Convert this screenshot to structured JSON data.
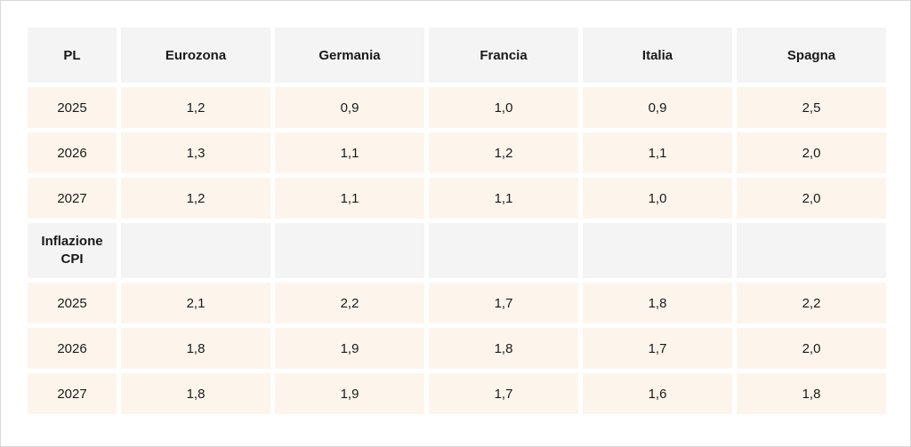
{
  "header": [
    "PL",
    "Eurozona",
    "Germania",
    "Francia",
    "Italia",
    "Spagna"
  ],
  "pl_rows": [
    {
      "year": "2025",
      "values": [
        "1,2",
        "0,9",
        "1,0",
        "0,9",
        "2,5"
      ]
    },
    {
      "year": "2026",
      "values": [
        "1,3",
        "1,1",
        "1,2",
        "1,1",
        "2,0"
      ]
    },
    {
      "year": "2027",
      "values": [
        "1,2",
        "1,1",
        "1,1",
        "1,0",
        "2,0"
      ]
    }
  ],
  "section": {
    "line1": "Inflazione",
    "line2": "CPI"
  },
  "cpi_rows": [
    {
      "year": "2025",
      "values": [
        "2,1",
        "2,2",
        "1,7",
        "1,8",
        "2,2"
      ]
    },
    {
      "year": "2026",
      "values": [
        "1,8",
        "1,9",
        "1,8",
        "1,7",
        "2,0"
      ]
    },
    {
      "year": "2027",
      "values": [
        "1,8",
        "1,9",
        "1,7",
        "1,6",
        "1,8"
      ]
    }
  ]
}
